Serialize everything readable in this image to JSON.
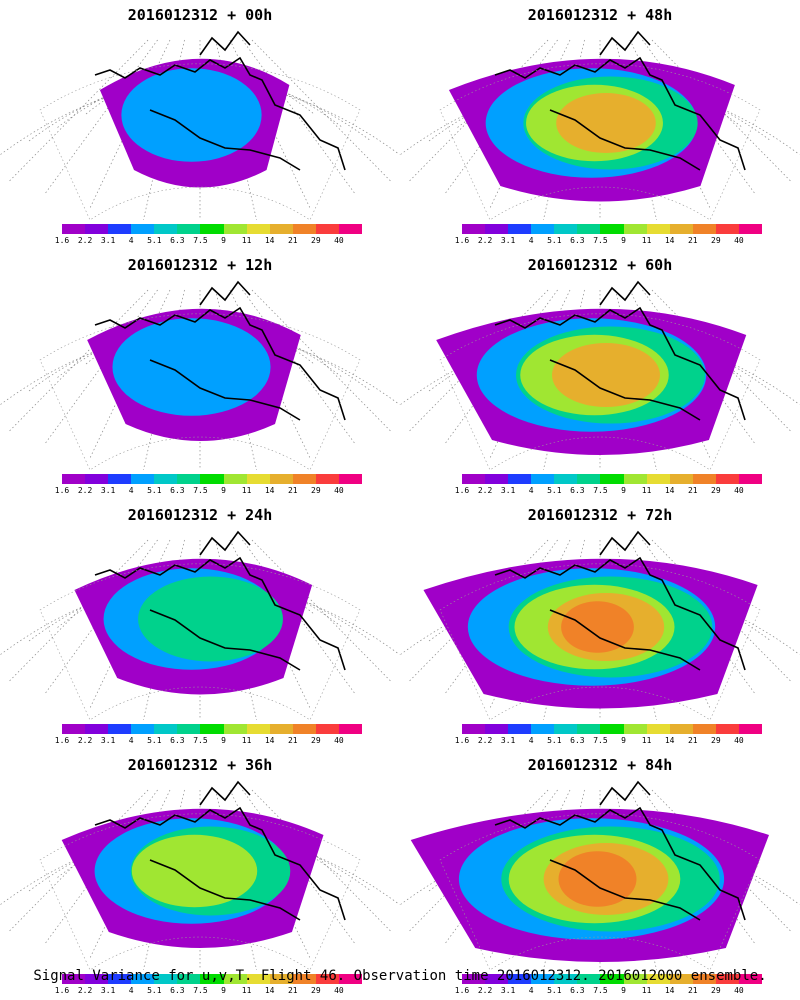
{
  "panels": [
    {
      "title": "2016012312 + 00h",
      "level": 0
    },
    {
      "title": "2016012312 + 48h",
      "level": 4
    },
    {
      "title": "2016012312 + 12h",
      "level": 1
    },
    {
      "title": "2016012312 + 60h",
      "level": 5
    },
    {
      "title": "2016012312 + 24h",
      "level": 2
    },
    {
      "title": "2016012312 + 72h",
      "level": 6
    },
    {
      "title": "2016012312 + 36h",
      "level": 3
    },
    {
      "title": "2016012312 + 84h",
      "level": 7
    }
  ],
  "colorbar": {
    "labels": [
      "1.6",
      "2.2",
      "3.1",
      "4",
      "5.1",
      "6.3",
      "7.5",
      "9",
      "11",
      "14",
      "21",
      "29",
      "40"
    ],
    "colors": [
      "#a000c8",
      "#8200dc",
      "#1e3cff",
      "#00a0ff",
      "#00c8c8",
      "#00d28c",
      "#00dc00",
      "#a0e632",
      "#e6dc32",
      "#e6af2d",
      "#f08228",
      "#fa3c3c",
      "#f00082"
    ]
  },
  "footer": "Signal Variance for u,v,T. Flight 46. Observation time 2016012312. 2016012000 ensemble."
}
